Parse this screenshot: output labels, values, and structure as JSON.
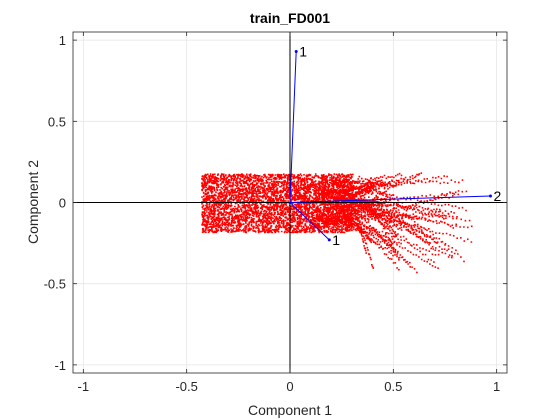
{
  "chart_data": {
    "type": "scatter",
    "subtype": "biplot",
    "title": "train_FD001",
    "xlabel": "Component 1",
    "ylabel": "Component 2",
    "xlim": [
      -1.05,
      1.05
    ],
    "ylim": [
      -1.05,
      1.05
    ],
    "xticks": [
      "-1",
      "-0.5",
      "0",
      "0.5",
      "1"
    ],
    "xtick_values": [
      -1,
      -0.5,
      0,
      0.5,
      1
    ],
    "yticks": [
      "-1",
      "-0.5",
      "0",
      "0.5",
      "1"
    ],
    "ytick_values": [
      -1,
      -0.5,
      0,
      0.5,
      1
    ],
    "grid": true,
    "box": true,
    "vectors": [
      {
        "label": "1",
        "x": 0.03,
        "y": 0.93
      },
      {
        "label": "2",
        "x": 0.97,
        "y": 0.04
      },
      {
        "label": "1",
        "x": 0.19,
        "y": -0.23
      }
    ],
    "point_cloud": {
      "color": "#ff0000",
      "x_range": [
        -0.43,
        0.9
      ],
      "y_core_range": [
        -0.18,
        0.18
      ],
      "trajectory_end_x_range": [
        0.3,
        0.9
      ],
      "trajectory_end_y_range": [
        -0.45,
        0.19
      ]
    },
    "colors": {
      "points": "#ff0000",
      "vectors": "#0000ff",
      "axes": "#000000",
      "grid": "#e6e6e6"
    }
  }
}
